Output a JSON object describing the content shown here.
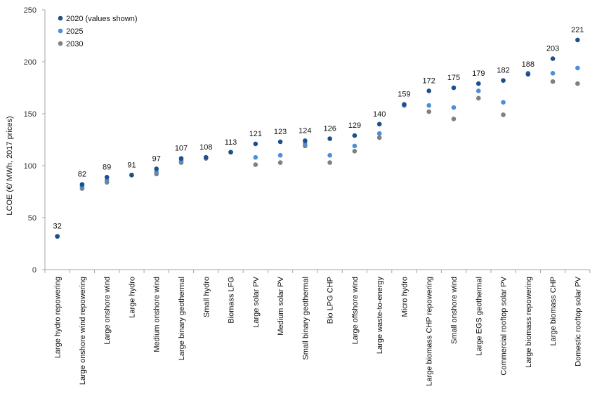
{
  "chart_data": {
    "type": "scatter",
    "ylabel": "LCOE (€/ MWh, 2017 prices)",
    "ylim": [
      0,
      250
    ],
    "yticks": [
      0,
      50,
      100,
      150,
      200,
      250
    ],
    "legend_position": "top-left",
    "categories": [
      "Large hydro repowering",
      "Large onshore wind repowering",
      "Large onshore wind",
      "Large hydro",
      "Medium onshore wind",
      "Large binary geothermal",
      "Small hydro",
      "Biomass LFG",
      "Large solar PV",
      "Medium solar PV",
      "Small binary geothermal",
      "Bio LPG CHP",
      "Large offshore wind",
      "Large waste-to-energy",
      "Micro hydro",
      "Large biomass CHP repowering",
      "Small onshore wind",
      "Large EGS geothermal",
      "Commercial rooftop solar PV",
      "Large biomass repowering",
      "Large biomass CHP",
      "Domestic rooftop solar PV"
    ],
    "series": [
      {
        "name": "2030",
        "color": "#808080",
        "values": [
          32,
          78,
          84,
          91,
          92,
          103,
          107,
          113,
          101,
          103,
          119,
          103,
          114,
          127,
          158,
          152,
          145,
          165,
          149,
          189,
          181,
          179
        ]
      },
      {
        "name": "2025",
        "color": "#4a90d9",
        "values": [
          32,
          80,
          86,
          91,
          94,
          105,
          108,
          113,
          108,
          110,
          121,
          110,
          119,
          131,
          158,
          158,
          156,
          172,
          161,
          189,
          189,
          194
        ]
      },
      {
        "name": "2020 (values shown)",
        "color": "#1f4e8c",
        "values": [
          32,
          82,
          89,
          91,
          97,
          107,
          108,
          113,
          121,
          123,
          124,
          126,
          129,
          140,
          159,
          172,
          175,
          179,
          182,
          188,
          203,
          221
        ]
      }
    ],
    "data_labels": [
      "32",
      "82",
      "89",
      "91",
      "97",
      "107",
      "108",
      "113",
      "121",
      "123",
      "124",
      "126",
      "129",
      "140",
      "159",
      "172",
      "175",
      "179",
      "182",
      "188",
      "203",
      "221"
    ]
  }
}
